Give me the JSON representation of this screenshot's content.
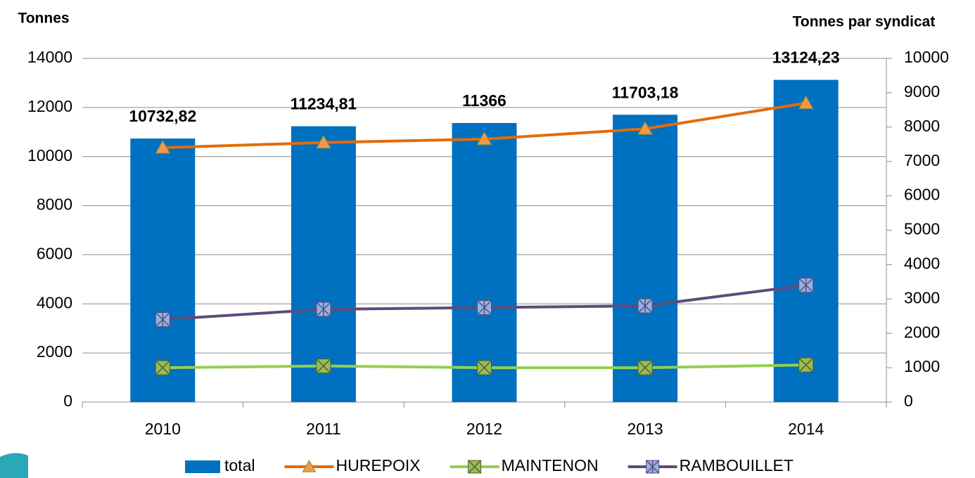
{
  "chart_data": {
    "type": "combo",
    "y_label": "Tonnes",
    "y2_label": "Tonnes par syndicat",
    "categories": [
      "2010",
      "2011",
      "2012",
      "2013",
      "2014"
    ],
    "ylim": [
      0,
      14000
    ],
    "yticks": [
      0,
      2000,
      4000,
      6000,
      8000,
      10000,
      12000,
      14000
    ],
    "y2lim": [
      0,
      10000
    ],
    "y2ticks": [
      0,
      1000,
      2000,
      3000,
      4000,
      5000,
      6000,
      7000,
      8000,
      9000,
      10000
    ],
    "grid": true,
    "legend": "bottom",
    "series": [
      {
        "name": "total",
        "type": "bar",
        "color": "#0070c0",
        "values": [
          10732.82,
          11234.81,
          11366,
          11703.18,
          13124.23
        ],
        "value_labels": [
          "10732,82",
          "11234,81",
          "11366",
          "11703,18",
          "13124,23"
        ]
      },
      {
        "name": "HUREPOIX",
        "type": "line",
        "axis": "y2",
        "color": "#e46c0a",
        "marker": "triangle",
        "marker_color": "#f79646",
        "values": [
          7400,
          7550,
          7650,
          7950,
          8700
        ]
      },
      {
        "name": "MAINTENON",
        "type": "line",
        "axis": "y2",
        "color": "#92d050",
        "marker": "x",
        "marker_color": "#9bbb59",
        "values": [
          1000,
          1050,
          1000,
          1000,
          1080
        ]
      },
      {
        "name": "RAMBOUILLET",
        "type": "line",
        "axis": "y2",
        "color": "#604a7b",
        "marker": "star",
        "marker_color": "#8eb4e3",
        "values": [
          2400,
          2700,
          2750,
          2800,
          3400
        ]
      }
    ]
  }
}
